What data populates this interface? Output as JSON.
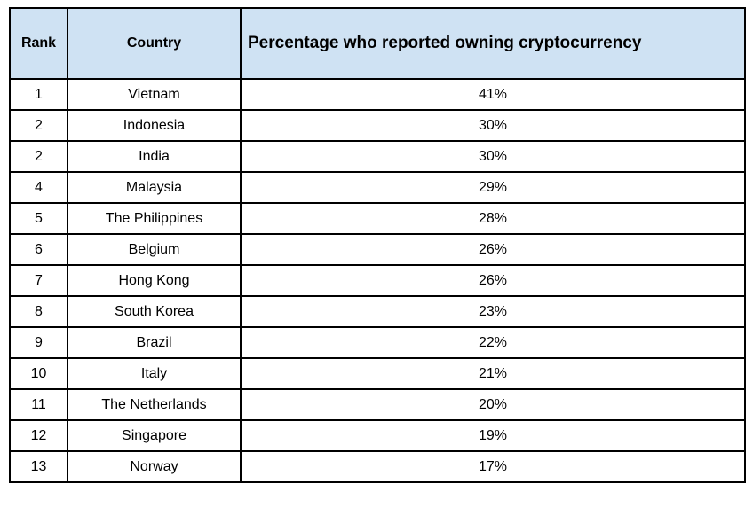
{
  "table": {
    "headers": {
      "rank": "Rank",
      "country": "Country",
      "percentage": "Percentage who reported owning cryptocurrency"
    },
    "rows": [
      {
        "rank": "1",
        "country": "Vietnam",
        "percentage": "41%"
      },
      {
        "rank": "2",
        "country": "Indonesia",
        "percentage": "30%"
      },
      {
        "rank": "2",
        "country": "India",
        "percentage": "30%"
      },
      {
        "rank": "4",
        "country": "Malaysia",
        "percentage": "29%"
      },
      {
        "rank": "5",
        "country": "The Philippines",
        "percentage": "28%"
      },
      {
        "rank": "6",
        "country": "Belgium",
        "percentage": "26%"
      },
      {
        "rank": "7",
        "country": "Hong Kong",
        "percentage": "26%"
      },
      {
        "rank": "8",
        "country": "South Korea",
        "percentage": "23%"
      },
      {
        "rank": "9",
        "country": "Brazil",
        "percentage": "22%"
      },
      {
        "rank": "10",
        "country": "Italy",
        "percentage": "21%"
      },
      {
        "rank": "11",
        "country": "The Netherlands",
        "percentage": "20%"
      },
      {
        "rank": "12",
        "country": "Singapore",
        "percentage": "19%"
      },
      {
        "rank": "13",
        "country": "Norway",
        "percentage": "17%"
      }
    ]
  },
  "colors": {
    "header_background": "#cfe2f3",
    "border": "#000000",
    "text": "#000000",
    "page_background": "#ffffff"
  },
  "chart_data": {
    "type": "table",
    "title": "Percentage who reported owning cryptocurrency",
    "columns": [
      "Rank",
      "Country",
      "Percentage who reported owning cryptocurrency"
    ],
    "categories": [
      "Vietnam",
      "Indonesia",
      "India",
      "Malaysia",
      "The Philippines",
      "Belgium",
      "Hong Kong",
      "South Korea",
      "Brazil",
      "Italy",
      "The Netherlands",
      "Singapore",
      "Norway"
    ],
    "ranks": [
      1,
      2,
      2,
      4,
      5,
      6,
      7,
      8,
      9,
      10,
      11,
      12,
      13
    ],
    "values": [
      41,
      30,
      30,
      29,
      28,
      26,
      26,
      23,
      22,
      21,
      20,
      19,
      17
    ],
    "value_unit": "%"
  }
}
